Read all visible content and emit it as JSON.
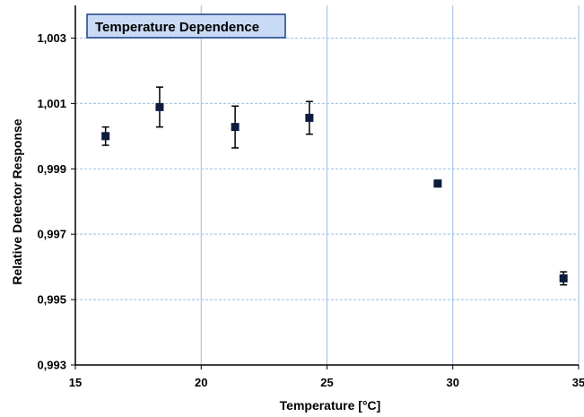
{
  "chart_data": {
    "type": "scatter",
    "title": "Temperature Dependence",
    "xlabel": "Temperature [°C]",
    "ylabel": "Relative Detector Response",
    "xlim": [
      15,
      35
    ],
    "ylim": [
      0.993,
      1.004
    ],
    "x_ticks": [
      15,
      20,
      25,
      30,
      35
    ],
    "x_tick_labels": [
      "15",
      "20",
      "25",
      "30",
      "35"
    ],
    "y_ticks": [
      0.993,
      0.995,
      0.997,
      0.999,
      1.001,
      1.003
    ],
    "y_tick_labels": [
      "0,993",
      "0,995",
      "0,997",
      "0,999",
      "1,001",
      "1,003"
    ],
    "grid": true,
    "legend_position": "top-left",
    "points": [
      {
        "x": 16.2,
        "y": 1.0,
        "err": 0.00028
      },
      {
        "x": 18.35,
        "y": 1.00089,
        "err": 0.00061
      },
      {
        "x": 21.35,
        "y": 1.00028,
        "err": 0.00064
      },
      {
        "x": 24.3,
        "y": 1.00056,
        "err": 0.0005
      },
      {
        "x": 29.4,
        "y": 0.99855,
        "err": 0.0001
      },
      {
        "x": 34.4,
        "y": 0.99565,
        "err": 0.0002
      }
    ],
    "colors": {
      "marker": "#0d1b3e",
      "grid": "#9dbde6",
      "legend_bg": "#c9daf5",
      "legend_border": "#1f3f8a"
    }
  }
}
